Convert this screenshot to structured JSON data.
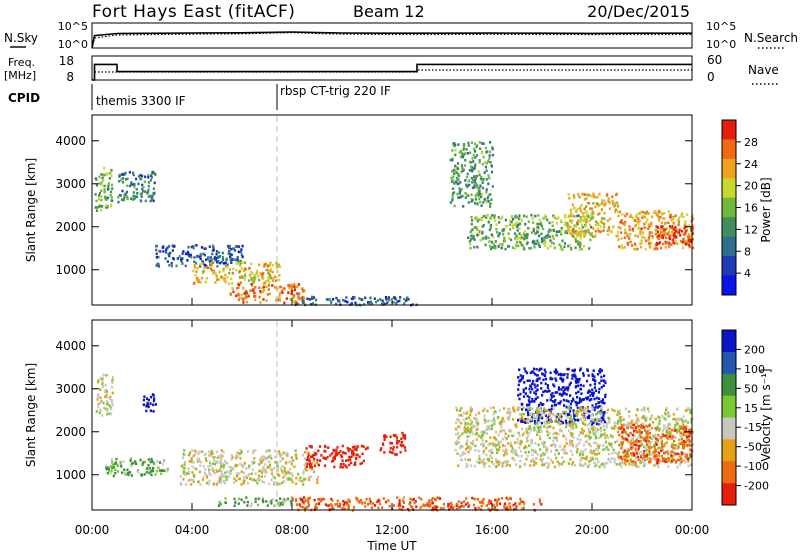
{
  "header": {
    "station": "Fort Hays East (fitACF)",
    "beam": "Beam 12",
    "date": "20/Dec/2015"
  },
  "strip_noise": {
    "left_label": "N.Sky",
    "right_label": "N.Search",
    "left_ticks": [
      "10^5",
      "10^0"
    ],
    "right_ticks": [
      "10^5",
      "10^0"
    ]
  },
  "strip_freq": {
    "left_label_1": "Freq.",
    "left_label_2": "[MHz]",
    "right_label": "Nave",
    "left_ticks": [
      "18",
      "8"
    ],
    "right_ticks": [
      "60",
      "0"
    ]
  },
  "strip_cpid": {
    "label": "CPID",
    "modes": [
      {
        "name": "themis 3300 IF",
        "start_hour": 0,
        "end_hour": 7.5
      },
      {
        "name": "rbsp CT-trig 220 IF",
        "start_hour": 7.5,
        "end_hour": 24
      }
    ]
  },
  "panels": [
    {
      "id": "power",
      "ylabel": "Slant Range [km]",
      "colorbar_label": "Power [dB]",
      "colorbar_ticks": [
        "28",
        "24",
        "20",
        "16",
        "12",
        "8",
        "4"
      ]
    },
    {
      "id": "velocity",
      "ylabel": "Slant Range [km]",
      "colorbar_label": "Velocity [m s⁻¹]",
      "colorbar_ticks": [
        "200",
        "100",
        "50",
        "15",
        "-15",
        "-50",
        "-100",
        "-200"
      ]
    }
  ],
  "colors": {
    "power_scale": [
      "#0a14e6",
      "#1e3ab4",
      "#2f6e8c",
      "#3f8f5c",
      "#6fb83c",
      "#c8d82c",
      "#f0a01e",
      "#f06a14",
      "#e61e0a"
    ],
    "velocity_scale": [
      "#0a14c8",
      "#2458b0",
      "#3d8f3d",
      "#7cc832",
      "#c8c8c0",
      "#e6a014",
      "#f06a14",
      "#e61e0a"
    ]
  },
  "chart_data": [
    {
      "type": "line",
      "title": "Fort Hays East (fitACF)",
      "series": [
        {
          "name": "N.Sky",
          "x": [
            0,
            0.1,
            1,
            4,
            6,
            7,
            8,
            9,
            10,
            12,
            14,
            16,
            18,
            20,
            22,
            24
          ],
          "y": [
            1,
            300,
            800,
            1000,
            1100,
            1300,
            1600,
            1200,
            1000,
            900,
            900,
            950,
            900,
            850,
            900,
            900
          ]
        },
        {
          "name": "N.Search",
          "x": [
            0,
            0.1,
            1,
            4,
            6,
            7,
            8,
            9,
            10,
            12,
            14,
            16,
            18,
            20,
            22,
            24
          ],
          "y": [
            1,
            100,
            400,
            600,
            700,
            900,
            1200,
            800,
            600,
            500,
            500,
            550,
            500,
            480,
            500,
            500
          ]
        }
      ],
      "xlim": [
        0,
        24
      ],
      "ylim": [
        1,
        100000
      ],
      "yscale": "log"
    },
    {
      "type": "line",
      "series": [
        {
          "name": "Freq. [MHz]",
          "x": [
            0,
            0.1,
            0.1,
            1,
            1,
            13,
            13,
            24
          ],
          "y": [
            8,
            8,
            14.5,
            14.5,
            11.5,
            11.5,
            14.5,
            14.5
          ]
        },
        {
          "name": "Nave",
          "x": [
            0,
            0.1,
            0.1,
            1,
            1,
            13,
            13,
            24
          ],
          "y": [
            0,
            0,
            20,
            20,
            20,
            20,
            25,
            25
          ]
        }
      ],
      "xlim": [
        0,
        24
      ],
      "ylim": [
        8,
        18
      ]
    },
    {
      "type": "heatmap",
      "xlabel": "",
      "ylabel": "Slant Range [km]",
      "colorbar_label": "Power [dB]",
      "zlim": [
        0,
        30
      ],
      "xlim": [
        0,
        24
      ],
      "ylim": [
        180,
        4600
      ],
      "regions": [
        {
          "t0": 0.1,
          "t1": 0.8,
          "r0": 2400,
          "r1": 3400,
          "z": 14
        },
        {
          "t0": 1.0,
          "t1": 2.5,
          "r0": 2600,
          "r1": 3300,
          "z": 10
        },
        {
          "t0": 2.5,
          "t1": 6.0,
          "r0": 1100,
          "r1": 1600,
          "z": 7
        },
        {
          "t0": 4.0,
          "t1": 7.5,
          "r0": 700,
          "r1": 1200,
          "z": 20
        },
        {
          "t0": 5.5,
          "t1": 8.5,
          "r0": 250,
          "r1": 700,
          "z": 24
        },
        {
          "t0": 8.0,
          "t1": 13.0,
          "r0": 200,
          "r1": 400,
          "z": 8
        },
        {
          "t0": 14.3,
          "t1": 16.0,
          "r0": 2500,
          "r1": 4000,
          "z": 12
        },
        {
          "t0": 15.0,
          "t1": 20.0,
          "r0": 1500,
          "r1": 2300,
          "z": 14
        },
        {
          "t0": 19.0,
          "t1": 21.0,
          "r0": 1800,
          "r1": 2800,
          "z": 20
        },
        {
          "t0": 21.0,
          "t1": 24.0,
          "r0": 1500,
          "r1": 2400,
          "z": 22
        },
        {
          "t0": 22.5,
          "t1": 24.0,
          "r0": 1600,
          "r1": 2100,
          "z": 28
        }
      ]
    },
    {
      "type": "heatmap",
      "xlabel": "Time UT",
      "ylabel": "Slant Range [km]",
      "colorbar_label": "Velocity [m s⁻¹]",
      "zlim": [
        -250,
        250
      ],
      "xlim": [
        0,
        24
      ],
      "ylim": [
        180,
        4600
      ],
      "xticks": [
        "00:00",
        "04:00",
        "08:00",
        "12:00",
        "16:00",
        "20:00",
        "00:00"
      ],
      "regions": [
        {
          "t0": 0.1,
          "t1": 0.8,
          "r0": 2400,
          "r1": 3400,
          "z": 0
        },
        {
          "t0": 2.0,
          "t1": 2.6,
          "r0": 2500,
          "r1": 2900,
          "z": 200
        },
        {
          "t0": 0.5,
          "t1": 3.0,
          "r0": 1000,
          "r1": 1400,
          "z": 40
        },
        {
          "t0": 3.5,
          "t1": 9.0,
          "r0": 800,
          "r1": 1600,
          "z": 0
        },
        {
          "t0": 8.5,
          "t1": 11.0,
          "r0": 1200,
          "r1": 1700,
          "z": -150
        },
        {
          "t0": 11.5,
          "t1": 12.5,
          "r0": 1500,
          "r1": 2000,
          "z": -200
        },
        {
          "t0": 5.0,
          "t1": 8.0,
          "r0": 300,
          "r1": 500,
          "z": 30
        },
        {
          "t0": 8.0,
          "t1": 18.0,
          "r0": 200,
          "r1": 500,
          "z": -60
        },
        {
          "t0": 17.0,
          "t1": 20.5,
          "r0": 2200,
          "r1": 3500,
          "z": 200
        },
        {
          "t0": 14.5,
          "t1": 24.0,
          "r0": 1200,
          "r1": 2600,
          "z": 0
        },
        {
          "t0": 21.0,
          "t1": 24.0,
          "r0": 1300,
          "r1": 2200,
          "z": -60
        }
      ]
    }
  ]
}
